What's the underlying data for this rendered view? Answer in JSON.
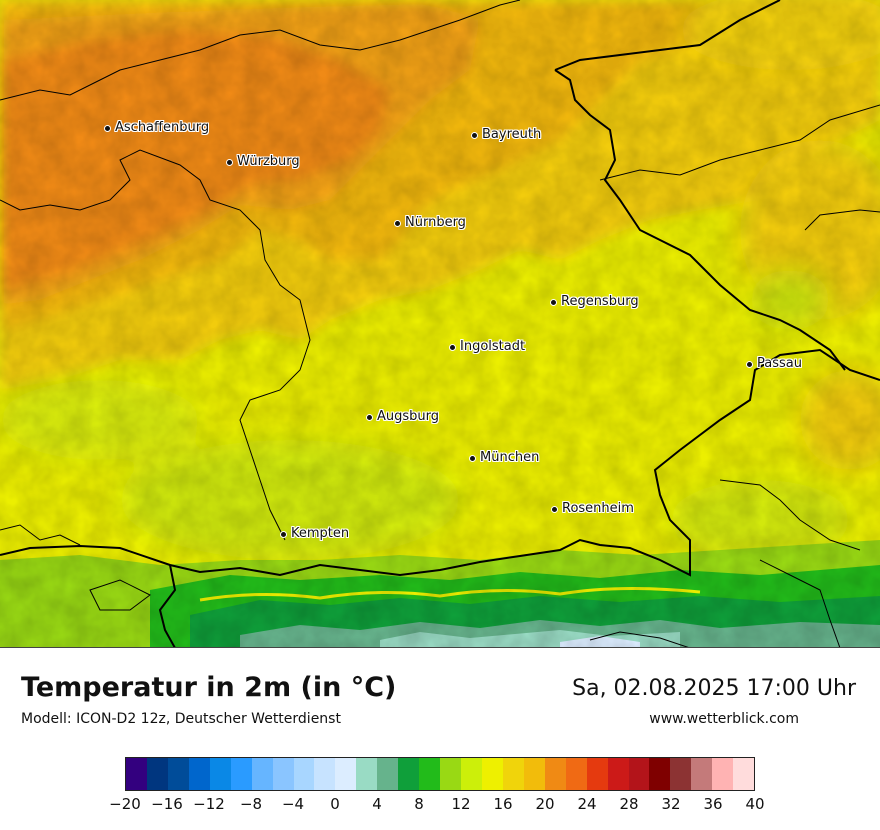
{
  "map": {
    "cities": [
      {
        "name": "Aschaffenburg"
      },
      {
        "name": "Würzburg"
      },
      {
        "name": "Bayreuth"
      },
      {
        "name": "Nürnberg"
      },
      {
        "name": "Regensburg"
      },
      {
        "name": "Ingolstadt"
      },
      {
        "name": "Passau"
      },
      {
        "name": "Augsburg"
      },
      {
        "name": "München"
      },
      {
        "name": "Rosenheim"
      },
      {
        "name": "Kempten"
      }
    ]
  },
  "footer": {
    "title": "Temperatur in 2m (in °C)",
    "model": "Modell: ICON-D2 12z, Deutscher Wetterdienst",
    "datetime": "Sa, 02.08.2025 17:00 Uhr",
    "website": "www.wetterblick.com"
  },
  "legend": {
    "colors": [
      "#33007f",
      "#00367f",
      "#004c99",
      "#0066cc",
      "#0a88e6",
      "#2a9bff",
      "#66b5ff",
      "#8ac5ff",
      "#a8d6ff",
      "#c7e3ff",
      "#dcedff",
      "#99dbc4",
      "#66b38c",
      "#0f9f3a",
      "#22bb1a",
      "#99d914",
      "#ccef0a",
      "#eef000",
      "#f0d40b",
      "#f2bc0b",
      "#f08a14",
      "#f06a14",
      "#e53a0f",
      "#cc1a18",
      "#b3141a",
      "#7f0000",
      "#8c3333",
      "#c47a7a",
      "#ffb3b3",
      "#ffdcdc"
    ],
    "tick_labels": [
      "−20",
      "−16",
      "−12",
      "−8",
      "−4",
      "0",
      "4",
      "8",
      "12",
      "16",
      "20",
      "24",
      "28",
      "32",
      "36",
      "40"
    ],
    "unit": "°C"
  }
}
